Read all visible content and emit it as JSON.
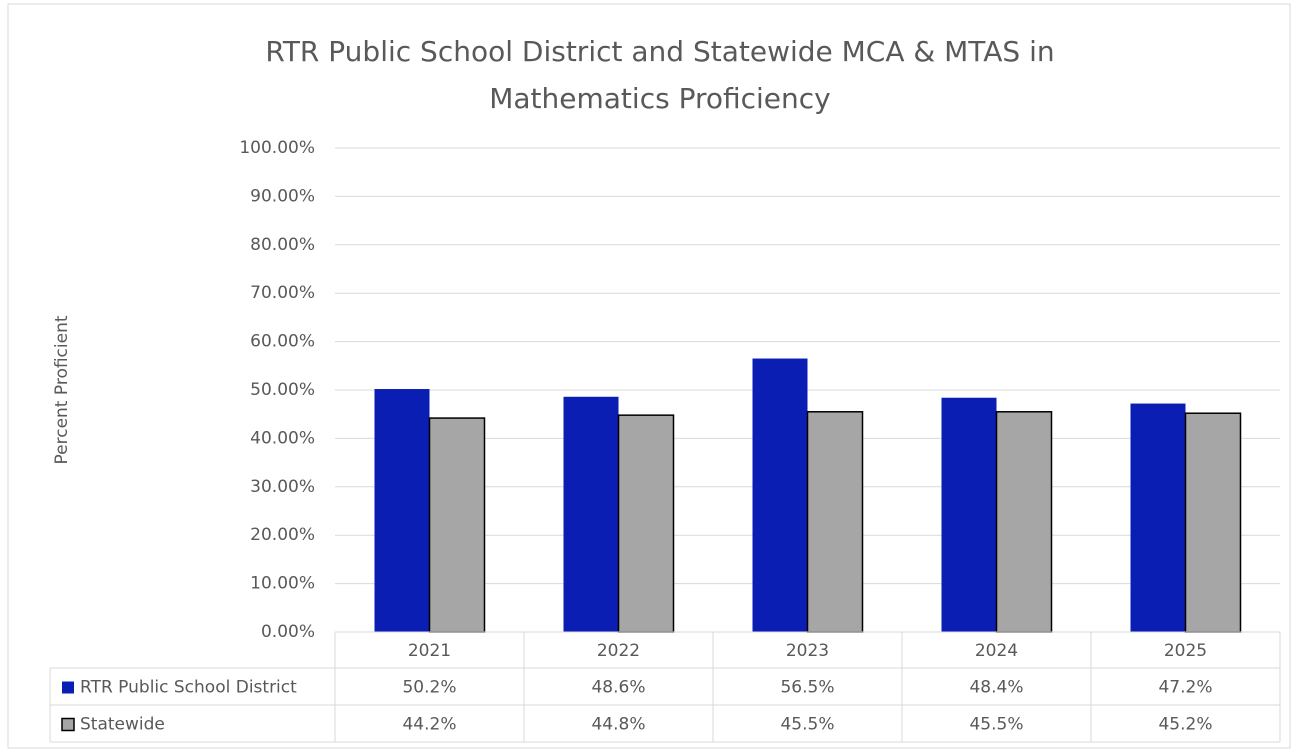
{
  "chart_data": {
    "type": "bar",
    "title": "RTR Public School District and Statewide MCA & MTAS in Mathematics Proficiency",
    "y_label": "Percent Proficient",
    "categories": [
      "2021",
      "2022",
      "2023",
      "2024",
      "2025"
    ],
    "series": [
      {
        "name": "RTR Public School District",
        "color": "#0a1eb4",
        "edgecolor": null,
        "values": [
          50.2,
          48.6,
          56.5,
          48.4,
          47.2
        ],
        "value_labels": [
          "50.2%",
          "48.6%",
          "56.5%",
          "48.4%",
          "47.2%"
        ]
      },
      {
        "name": "Statewide",
        "color": "#a6a6a6",
        "edgecolor": "#000000",
        "values": [
          44.2,
          44.8,
          45.5,
          45.5,
          45.2
        ],
        "value_labels": [
          "44.2%",
          "44.8%",
          "45.5%",
          "45.5%",
          "45.2%"
        ]
      }
    ],
    "ylim": [
      0,
      100
    ],
    "yticks": [
      {
        "value": 0,
        "label": "0.00%"
      },
      {
        "value": 10,
        "label": "10.00%"
      },
      {
        "value": 20,
        "label": "20.00%"
      },
      {
        "value": 30,
        "label": "30.00%"
      },
      {
        "value": 40,
        "label": "40.00%"
      },
      {
        "value": 50,
        "label": "50.00%"
      },
      {
        "value": 60,
        "label": "60.00%"
      },
      {
        "value": 70,
        "label": "70.00%"
      },
      {
        "value": 80,
        "label": "80.00%"
      },
      {
        "value": 90,
        "label": "90.00%"
      },
      {
        "value": 100,
        "label": "100.00%"
      }
    ],
    "grid": true,
    "data_table": true
  }
}
